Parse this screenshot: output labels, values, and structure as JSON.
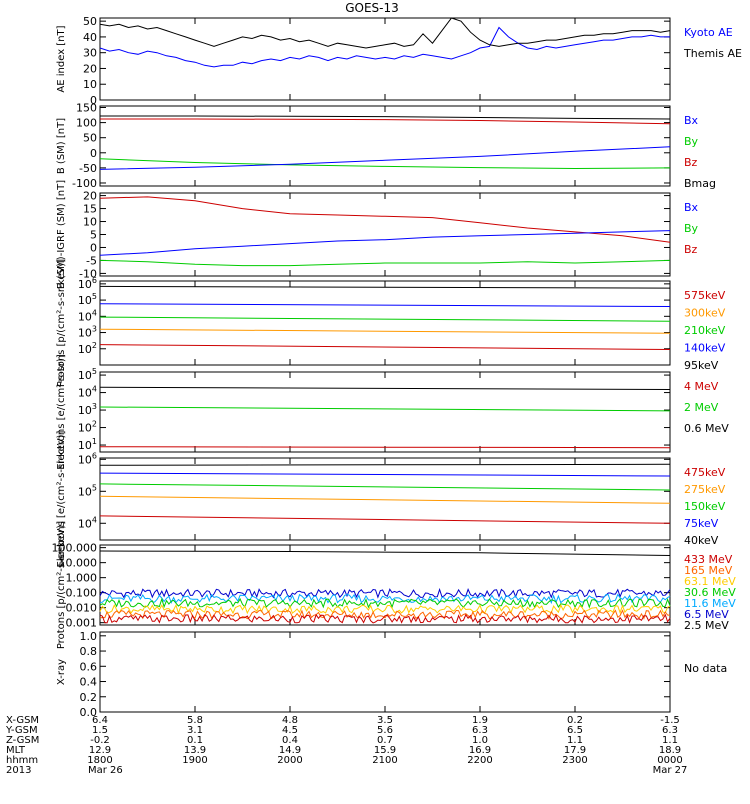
{
  "title": "GOES-13",
  "chart_data": [
    {
      "type": "line",
      "ylabel": "AE index [nT]",
      "yticks": [
        "0",
        "10",
        "20",
        "30",
        "40",
        "50"
      ],
      "ylim": [
        0,
        52
      ],
      "legend": [
        {
          "label": "Kyoto AE",
          "color": "#0000ff"
        },
        {
          "label": "Themis AE",
          "color": "#000000"
        }
      ],
      "series": [
        {
          "name": "Kyoto AE",
          "color": "#0000ff",
          "x": [
            0,
            0.1,
            0.2,
            0.3,
            0.4,
            0.5,
            0.6,
            0.7,
            0.8,
            0.9,
            1.0,
            1.1,
            1.2,
            1.3,
            1.4,
            1.5,
            1.6,
            1.7,
            1.8,
            1.9,
            2.0,
            2.1,
            2.2,
            2.3,
            2.4,
            2.5,
            2.6,
            2.7,
            2.8,
            2.9,
            3.0,
            3.1,
            3.2,
            3.3,
            3.4,
            3.5,
            3.6,
            3.7,
            3.8,
            3.9,
            4.0,
            4.1,
            4.2,
            4.3,
            4.4,
            4.5,
            4.6,
            4.7,
            4.8,
            4.9,
            5.0,
            5.1,
            5.2,
            5.3,
            5.4,
            5.5,
            5.6,
            5.7,
            5.8,
            5.9,
            6.0
          ],
          "y": [
            33,
            31,
            32,
            30,
            29,
            31,
            30,
            28,
            27,
            25,
            24,
            22,
            21,
            22,
            22,
            24,
            23,
            25,
            26,
            25,
            27,
            26,
            28,
            27,
            25,
            27,
            26,
            28,
            27,
            26,
            27,
            26,
            28,
            27,
            29,
            28,
            27,
            26,
            28,
            30,
            33,
            34,
            46,
            40,
            36,
            33,
            32,
            34,
            33,
            34,
            35,
            36,
            37,
            38,
            38,
            39,
            40,
            40,
            41,
            40,
            40
          ]
        },
        {
          "name": "Themis AE",
          "color": "#000000",
          "x": [
            0,
            0.1,
            0.2,
            0.3,
            0.4,
            0.5,
            0.6,
            0.7,
            0.8,
            0.9,
            1.0,
            1.1,
            1.2,
            1.3,
            1.4,
            1.5,
            1.6,
            1.7,
            1.8,
            1.9,
            2.0,
            2.1,
            2.2,
            2.3,
            2.4,
            2.5,
            2.6,
            2.7,
            2.8,
            2.9,
            3.0,
            3.1,
            3.2,
            3.3,
            3.4,
            3.5,
            3.6,
            3.7,
            3.8,
            3.9,
            4.0,
            4.1,
            4.2,
            4.3,
            4.4,
            4.5,
            4.6,
            4.7,
            4.8,
            4.9,
            5.0,
            5.1,
            5.2,
            5.3,
            5.4,
            5.5,
            5.6,
            5.7,
            5.8,
            5.9,
            6.0
          ],
          "y": [
            48,
            47,
            48,
            46,
            47,
            45,
            46,
            44,
            42,
            40,
            38,
            36,
            34,
            36,
            38,
            40,
            39,
            41,
            40,
            38,
            39,
            37,
            38,
            36,
            34,
            36,
            35,
            34,
            33,
            34,
            35,
            36,
            34,
            35,
            42,
            36,
            44,
            52,
            50,
            43,
            38,
            35,
            34,
            35,
            36,
            36,
            37,
            38,
            38,
            39,
            40,
            41,
            41,
            42,
            42,
            43,
            44,
            44,
            44,
            43,
            44
          ]
        }
      ]
    },
    {
      "type": "line",
      "ylabel": "B (SM) [nT]",
      "yticks": [
        "-100",
        "-50",
        "0",
        "50",
        "100",
        "150"
      ],
      "ylim": [
        -110,
        155
      ],
      "legend": [
        {
          "label": "Bx",
          "color": "#0000ff"
        },
        {
          "label": "By",
          "color": "#00cc00"
        },
        {
          "label": "Bz",
          "color": "#cc0000"
        },
        {
          "label": "Bmag",
          "color": "#000000"
        }
      ],
      "series": [
        {
          "name": "Bmag",
          "color": "#000000",
          "x": [
            0,
            1,
            2,
            3,
            4,
            5,
            6
          ],
          "y": [
            122,
            122,
            121,
            120,
            117,
            114,
            112
          ]
        },
        {
          "name": "Bz",
          "color": "#cc0000",
          "x": [
            0,
            1,
            2,
            3,
            4,
            5,
            6
          ],
          "y": [
            112,
            112,
            111,
            110,
            107,
            102,
            96
          ]
        },
        {
          "name": "By",
          "color": "#00cc00",
          "x": [
            0,
            1,
            2,
            3,
            4,
            5,
            6
          ],
          "y": [
            -20,
            -32,
            -40,
            -45,
            -49,
            -52,
            -50
          ]
        },
        {
          "name": "Bx",
          "color": "#0000ff",
          "x": [
            0,
            1,
            2,
            3,
            4,
            5,
            6
          ],
          "y": [
            -55,
            -48,
            -38,
            -25,
            -12,
            5,
            20
          ]
        }
      ]
    },
    {
      "type": "line",
      "ylabel": "B (SM)-IGRF (SM) [nT]",
      "yticks": [
        "-10",
        "-5",
        "0",
        "5",
        "10",
        "15",
        "20"
      ],
      "ylim": [
        -11,
        21
      ],
      "legend": [
        {
          "label": "Bx",
          "color": "#0000ff"
        },
        {
          "label": "By",
          "color": "#00cc00"
        },
        {
          "label": "Bz",
          "color": "#cc0000"
        }
      ],
      "series": [
        {
          "name": "Bz",
          "color": "#cc0000",
          "x": [
            0,
            0.5,
            1,
            1.5,
            2,
            2.5,
            3,
            3.5,
            4,
            4.5,
            5,
            5.5,
            6
          ],
          "y": [
            19,
            19.5,
            18,
            15,
            13,
            12.5,
            12,
            11.5,
            9.5,
            7.5,
            6,
            4.5,
            2
          ]
        },
        {
          "name": "Bx",
          "color": "#0000ff",
          "x": [
            0,
            0.5,
            1,
            1.5,
            2,
            2.5,
            3,
            3.5,
            4,
            4.5,
            5,
            5.5,
            6
          ],
          "y": [
            -3,
            -2,
            -0.5,
            0.5,
            1.5,
            2.5,
            3,
            4,
            4.5,
            5,
            5.5,
            6,
            6.5
          ]
        },
        {
          "name": "By",
          "color": "#00cc00",
          "x": [
            0,
            0.5,
            1,
            1.5,
            2,
            2.5,
            3,
            3.5,
            4,
            4.5,
            5,
            5.5,
            6
          ],
          "y": [
            -5,
            -5.5,
            -6.5,
            -7,
            -7,
            -6.5,
            -6,
            -6,
            -6,
            -5.5,
            -6,
            -5.5,
            -5
          ]
        }
      ]
    },
    {
      "type": "line",
      "log": true,
      "ylabel": "Protons [p/(cm²-s-sr-keV)]",
      "yticks": [
        "10^2",
        "10^3",
        "10^4",
        "10^5",
        "10^6"
      ],
      "ylim": [
        10,
        1500000
      ],
      "legend": [
        {
          "label": "575keV",
          "color": "#cc0000"
        },
        {
          "label": "300keV",
          "color": "#ff9900"
        },
        {
          "label": "210keV",
          "color": "#00cc00"
        },
        {
          "label": "140keV",
          "color": "#0000ff"
        },
        {
          "label": "95keV",
          "color": "#000000"
        }
      ],
      "series": [
        {
          "name": "95keV",
          "color": "#000000",
          "x": [
            0,
            6
          ],
          "y": [
            700000,
            550000
          ]
        },
        {
          "name": "140keV",
          "color": "#0000ff",
          "x": [
            0,
            6
          ],
          "y": [
            60000,
            40000
          ]
        },
        {
          "name": "210keV",
          "color": "#00cc00",
          "x": [
            0,
            6
          ],
          "y": [
            9000,
            5000
          ]
        },
        {
          "name": "300keV",
          "color": "#ff9900",
          "x": [
            0,
            6
          ],
          "y": [
            1600,
            900
          ]
        },
        {
          "name": "575keV",
          "color": "#cc0000",
          "x": [
            0,
            6
          ],
          "y": [
            180,
            90
          ]
        }
      ]
    },
    {
      "type": "line",
      "log": true,
      "ylabel": "Electrons [e/(cm²-s-sr)]",
      "yticks": [
        "10^1",
        "10^2",
        "10^3",
        "10^4",
        "10^5"
      ],
      "ylim": [
        4,
        150000
      ],
      "legend": [
        {
          "label": "4 MeV",
          "color": "#cc0000"
        },
        {
          "label": "2 MeV",
          "color": "#00cc00"
        },
        {
          "label": "0.6 MeV",
          "color": "#000000"
        }
      ],
      "series": [
        {
          "name": "0.6 MeV",
          "color": "#000000",
          "x": [
            0,
            6
          ],
          "y": [
            20000,
            15000
          ]
        },
        {
          "name": "2 MeV",
          "color": "#00cc00",
          "x": [
            0,
            6
          ],
          "y": [
            1500,
            900
          ]
        },
        {
          "name": "4 MeV",
          "color": "#cc0000",
          "x": [
            0,
            6
          ],
          "y": [
            8,
            7
          ]
        }
      ]
    },
    {
      "type": "line",
      "log": true,
      "ylabel": "Electrons [e/(cm²-s-sr-keV)]",
      "yticks": [
        "10^4",
        "10^5",
        "10^6"
      ],
      "ylim": [
        3000,
        1100000
      ],
      "legend": [
        {
          "label": "475keV",
          "color": "#cc0000"
        },
        {
          "label": "275keV",
          "color": "#ff9900"
        },
        {
          "label": "150keV",
          "color": "#00cc00"
        },
        {
          "label": "75keV",
          "color": "#0000ff"
        },
        {
          "label": "40keV",
          "color": "#000000"
        }
      ],
      "series": [
        {
          "name": "40keV",
          "color": "#000000",
          "x": [
            0,
            6
          ],
          "y": [
            650000,
            700000
          ]
        },
        {
          "name": "75keV",
          "color": "#0000ff",
          "x": [
            0,
            6
          ],
          "y": [
            370000,
            300000
          ]
        },
        {
          "name": "150keV",
          "color": "#00cc00",
          "x": [
            0,
            6
          ],
          "y": [
            170000,
            110000
          ]
        },
        {
          "name": "275keV",
          "color": "#ff9900",
          "x": [
            0,
            6
          ],
          "y": [
            70000,
            42000
          ]
        },
        {
          "name": "475keV",
          "color": "#cc0000",
          "x": [
            0,
            6
          ],
          "y": [
            17000,
            10000
          ]
        }
      ]
    },
    {
      "type": "line",
      "log": true,
      "ylabel": "Protons [p/(cm²-s-sr-keV)]",
      "yticks": [
        "0.001",
        "0.010",
        "0.100",
        "1.000",
        "10.000",
        "100.000"
      ],
      "ylim": [
        0.0007,
        150
      ],
      "legend": [
        {
          "label": "433 MeV",
          "color": "#cc0000"
        },
        {
          "label": "165 MeV",
          "color": "#ff6600"
        },
        {
          "label": "63.1 MeV",
          "color": "#ffcc00"
        },
        {
          "label": "30.6 MeV",
          "color": "#00cc00"
        },
        {
          "label": "11.6 MeV",
          "color": "#00aaff"
        },
        {
          "label": "6.5 MeV",
          "color": "#0000cc"
        },
        {
          "label": "2.5 MeV",
          "color": "#000000"
        }
      ],
      "series": [
        {
          "name": "2.5 MeV",
          "color": "#000000",
          "x": [
            0,
            2,
            4,
            6
          ],
          "y": [
            60,
            55,
            45,
            30
          ]
        },
        {
          "name": "6.5 MeV",
          "color": "#0000cc",
          "x": [
            0,
            6
          ],
          "y": [
            0.09,
            0.09
          ],
          "noisy": true
        },
        {
          "name": "11.6 MeV",
          "color": "#00aaff",
          "x": [
            0,
            6
          ],
          "y": [
            0.04,
            0.04
          ],
          "noisy": true
        },
        {
          "name": "30.6 MeV",
          "color": "#00cc00",
          "x": [
            0,
            6
          ],
          "y": [
            0.02,
            0.02
          ],
          "noisy": true
        },
        {
          "name": "63.1 MeV",
          "color": "#ffcc00",
          "x": [
            0,
            6
          ],
          "y": [
            0.008,
            0.008
          ],
          "noisy": true
        },
        {
          "name": "165 MeV",
          "color": "#ff6600",
          "x": [
            0,
            6
          ],
          "y": [
            0.0035,
            0.0035
          ],
          "noisy": true
        },
        {
          "name": "433 MeV",
          "color": "#cc0000",
          "x": [
            0,
            6
          ],
          "y": [
            0.0018,
            0.0018
          ],
          "noisy": true
        }
      ]
    },
    {
      "type": "line",
      "ylabel": "X-ray",
      "yticks": [
        "0.0",
        "0.2",
        "0.4",
        "0.6",
        "0.8",
        "1.0"
      ],
      "ylim": [
        0,
        1.05
      ],
      "legend": [
        {
          "label": "No data",
          "color": "#000000"
        }
      ],
      "series": []
    }
  ],
  "axis_table": {
    "row_labels": [
      "X-GSM",
      "Y-GSM",
      "Z-GSM",
      "MLT",
      "hhmm",
      "2013"
    ],
    "columns": [
      [
        "6.4",
        "1.5",
        "-0.2",
        "12.9",
        "1800",
        "Mar 26"
      ],
      [
        "5.8",
        "3.1",
        "0.1",
        "13.9",
        "1900",
        ""
      ],
      [
        "4.8",
        "4.5",
        "0.4",
        "14.9",
        "2000",
        ""
      ],
      [
        "3.5",
        "5.6",
        "0.7",
        "15.9",
        "2100",
        ""
      ],
      [
        "1.9",
        "6.3",
        "1.0",
        "16.9",
        "2200",
        ""
      ],
      [
        "0.2",
        "6.5",
        "1.1",
        "17.9",
        "2300",
        ""
      ],
      [
        "-1.5",
        "6.3",
        "1.1",
        "18.9",
        "0000",
        "Mar 27"
      ]
    ]
  }
}
